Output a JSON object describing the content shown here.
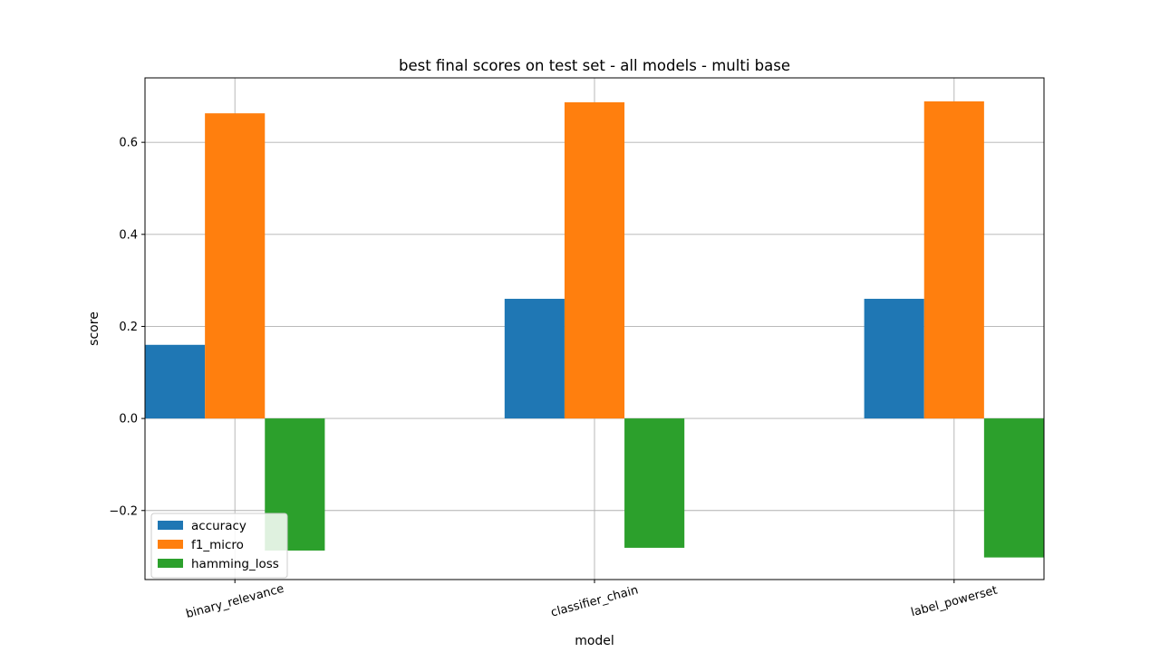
{
  "chart_data": {
    "type": "bar",
    "title": "best final scores on test set - all models - multi base",
    "xlabel": "model",
    "ylabel": "score",
    "categories": [
      "binary_relevance",
      "classifier_chain",
      "label_powerset"
    ],
    "series": [
      {
        "name": "accuracy",
        "color": "#1f77b4",
        "values": [
          0.16,
          0.26,
          0.26
        ]
      },
      {
        "name": "f1_micro",
        "color": "#ff7f0e",
        "values": [
          0.663,
          0.687,
          0.689
        ]
      },
      {
        "name": "hamming_loss",
        "color": "#2ca02c",
        "values": [
          -0.287,
          -0.281,
          -0.302
        ]
      }
    ],
    "ylim": [
      -0.35,
      0.74
    ],
    "yticks": [
      -0.2,
      0.0,
      0.2,
      0.4,
      0.6
    ],
    "ytick_labels": [
      "−0.2",
      "0.0",
      "0.2",
      "0.4",
      "0.6"
    ],
    "grid": true,
    "legend_position": "lower-left",
    "xtick_rotation_deg": 15
  }
}
